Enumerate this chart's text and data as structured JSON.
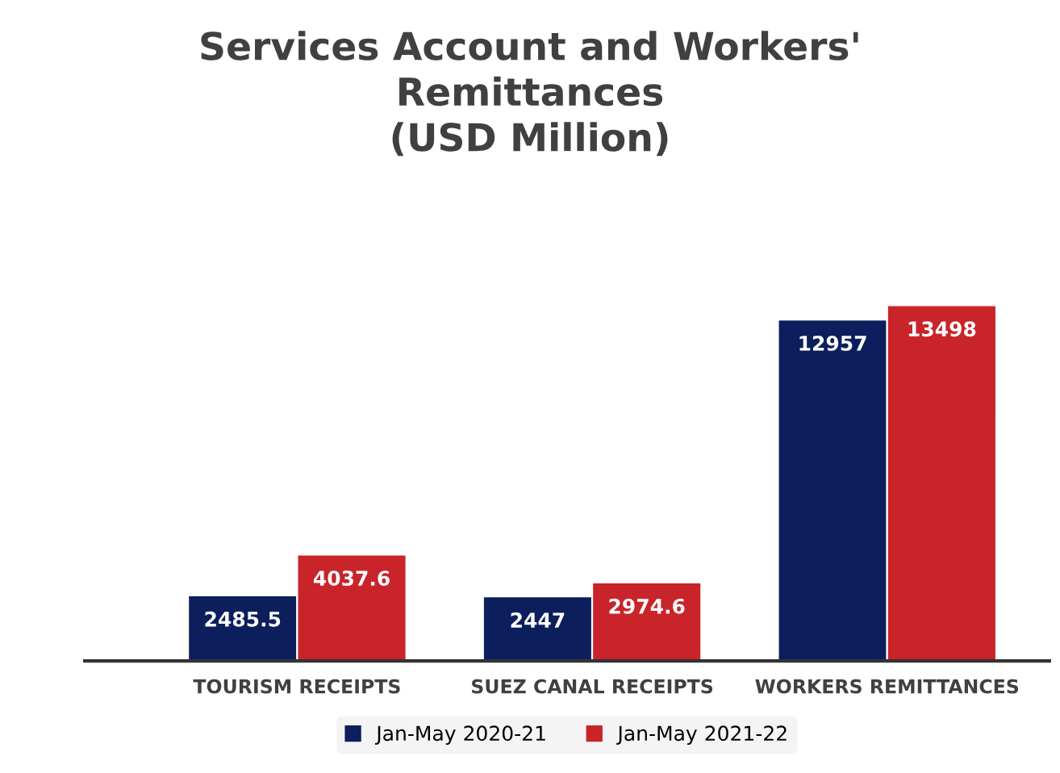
{
  "chart_data": {
    "type": "bar",
    "title": "Services Account and Workers'\nRemittances\n(USD Million)",
    "categories": [
      "TOURISM RECEIPTS",
      "SUEZ CANAL RECEIPTS",
      "WORKERS REMITTANCES"
    ],
    "series": [
      {
        "name": "Jan-May 2020-21",
        "color": "#0c1f5c",
        "values": [
          2485.5,
          2447,
          12957
        ]
      },
      {
        "name": "Jan-May 2021-22",
        "color": "#c8242a",
        "values": [
          4037.6,
          2974.6,
          13498
        ]
      }
    ],
    "data_labels": true,
    "legend": "bottom",
    "grid": false
  }
}
